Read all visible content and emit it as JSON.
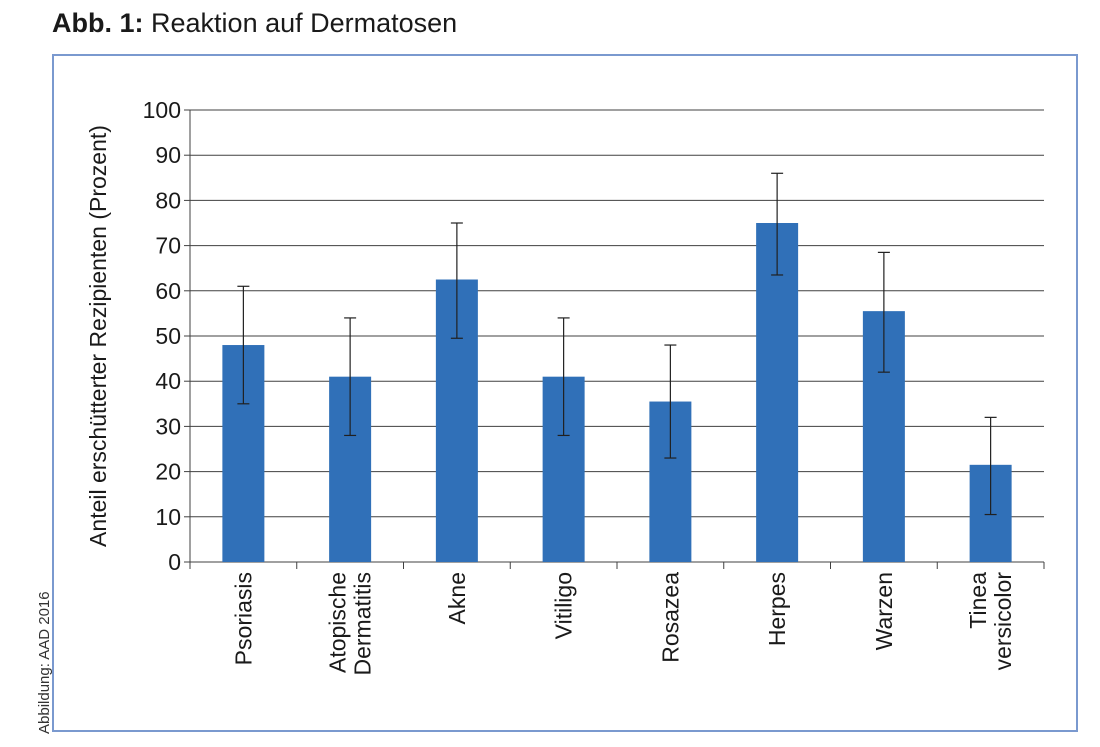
{
  "figure": {
    "label": "Abb. 1:",
    "title": "Reaktion auf Dermatosen",
    "credit": "Abbildung: AAD 2016"
  },
  "chart_data": {
    "type": "bar",
    "ylabel": "Anteil erschütterter Rezipienten (Prozent)",
    "xlabel": "",
    "ylim": [
      0,
      100
    ],
    "yticks": [
      0,
      10,
      20,
      30,
      40,
      50,
      60,
      70,
      80,
      90,
      100
    ],
    "grid": true,
    "legend": "none",
    "bar_color": "#3070b8",
    "categories": [
      [
        "Psoriasis"
      ],
      [
        "Atopische",
        "Dermatitis"
      ],
      [
        "Akne"
      ],
      [
        "Vitiligo"
      ],
      [
        "Rosazea"
      ],
      [
        "Herpes"
      ],
      [
        "Warzen"
      ],
      [
        "Tinea",
        "versicolor"
      ]
    ],
    "values": [
      48,
      41,
      62.5,
      41,
      35.5,
      75,
      55.5,
      21.5
    ],
    "error_low": [
      35,
      28,
      49.5,
      28,
      23,
      63.5,
      42,
      10.5
    ],
    "error_high": [
      61,
      54,
      75,
      54,
      48,
      86,
      68.5,
      32
    ]
  }
}
